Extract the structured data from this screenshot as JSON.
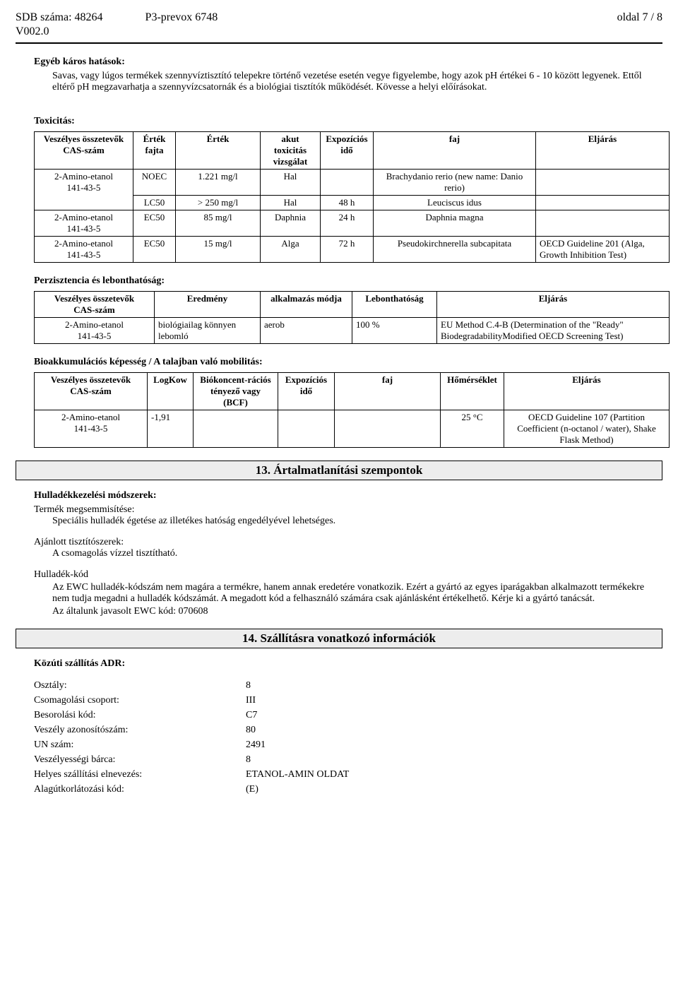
{
  "header": {
    "sdb_label": "SDB száma: 48264",
    "product": "P3-prevox 6748",
    "page": "oldal 7 / 8",
    "version": "V002.0"
  },
  "section_effects": {
    "heading": "Egyéb káros hatások:",
    "p1": "Savas, vagy lúgos termékek szennyvíztisztító telepekre történő vezetése esetén vegye figyelembe, hogy azok pH értékei 6 - 10 között legyenek. Ettől eltérő pH megzavarhatja a szennyvízcsatornák és a biológiai tisztítók működését. Kövesse a helyi előírásokat."
  },
  "tox": {
    "heading": "Toxicitás:",
    "cols": [
      "Veszélyes összetevők\nCAS-szám",
      "Érték fajta",
      "Érték",
      "akut toxicitás vizsgálat",
      "Expozíciós idő",
      "faj",
      "Eljárás"
    ],
    "rows": [
      {
        "c0a": "2-Amino-etanol",
        "c0b": "141-43-5",
        "c1": "NOEC",
        "c2": "1.221 mg/l",
        "c3": "Hal",
        "c4": "",
        "c5": "Brachydanio rerio (new name: Danio rerio)",
        "c6": ""
      },
      {
        "c0a": "",
        "c0b": "",
        "c1": "LC50",
        "c2": "> 250 mg/l",
        "c3": "Hal",
        "c4": "48 h",
        "c5": "Leuciscus idus",
        "c6": ""
      },
      {
        "c0a": "2-Amino-etanol",
        "c0b": "141-43-5",
        "c1": "EC50",
        "c2": "85 mg/l",
        "c3": "Daphnia",
        "c4": "24 h",
        "c5": "Daphnia magna",
        "c6": ""
      },
      {
        "c0a": "2-Amino-etanol",
        "c0b": "141-43-5",
        "c1": "EC50",
        "c2": "15 mg/l",
        "c3": "Alga",
        "c4": "72 h",
        "c5": "Pseudokirchnerella subcapitata",
        "c6": "OECD Guideline 201 (Alga, Growth Inhibition Test)"
      }
    ]
  },
  "persist": {
    "heading": "Perzisztencia és lebonthatóság:",
    "cols": [
      "Veszélyes összetevők\nCAS-szám",
      "Eredmény",
      "alkalmazás módja",
      "Lebonthatóság",
      "Eljárás"
    ],
    "row": {
      "c0a": "2-Amino-etanol",
      "c0b": "141-43-5",
      "c1": "biológiailag könnyen lebomló",
      "c2": "aerob",
      "c3": "100 %",
      "c4": "EU Method C.4-B (Determination of the \"Ready\" BiodegradabilityModified OECD Screening Test)"
    }
  },
  "bioacc": {
    "heading": "Bioakkumulációs képesség / A talajban való mobilitás:",
    "cols": [
      "Veszélyes összetevők\nCAS-szám",
      "LogKow",
      "Biókoncent-rációs tényező vagy (BCF)",
      "Expozíciós idő",
      "faj",
      "Hőmérséklet",
      "Eljárás"
    ],
    "row": {
      "c0a": "2-Amino-etanol",
      "c0b": "141-43-5",
      "c1": "-1,91",
      "c2": "",
      "c3": "",
      "c4": "",
      "c5": "25 °C",
      "c6": "OECD Guideline 107 (Partition Coefficient (n-octanol / water), Shake Flask Method)"
    }
  },
  "s13": {
    "title": "13. Ártalmatlanítási szempontok",
    "h1": "Hulladékkezelési módszerek:",
    "h1a": "Termék megsemmisítése:",
    "p1": "Speciális hulladék égetése az illetékes hatóság engedélyével lehetséges.",
    "h2": "Ajánlott tisztítószerek:",
    "p2": "A csomagolás vízzel tisztítható.",
    "h3": "Hulladék-kód",
    "p3": "Az EWC hulladék-kódszám nem magára a termékre, hanem annak eredetére vonatkozik. Ezért a gyártó az egyes iparágakban alkalmazott termékekre nem tudja megadni a hulladék kódszámát. A megadott kód a felhasználó számára csak ajánlásként értékelhető. Kérje ki a gyártó tanácsát.",
    "p4": "Az általunk javasolt EWC kód: 070608"
  },
  "s14": {
    "title": "14. Szállításra vonatkozó információk",
    "h1": "Közúti szállítás ADR:",
    "items": [
      {
        "k": "Osztály:",
        "v": "8"
      },
      {
        "k": "Csomagolási csoport:",
        "v": "III"
      },
      {
        "k": "Besorolási kód:",
        "v": "C7"
      },
      {
        "k": "Veszély azonosítószám:",
        "v": "80"
      },
      {
        "k": "UN szám:",
        "v": "2491"
      },
      {
        "k": "Veszélyességi bárca:",
        "v": "8"
      },
      {
        "k": "Helyes szállítási elnevezés:",
        "v": "ETANOL-AMIN OLDAT"
      },
      {
        "k": "Alagútkorlátozási kód:",
        "v": "(E)"
      }
    ]
  }
}
